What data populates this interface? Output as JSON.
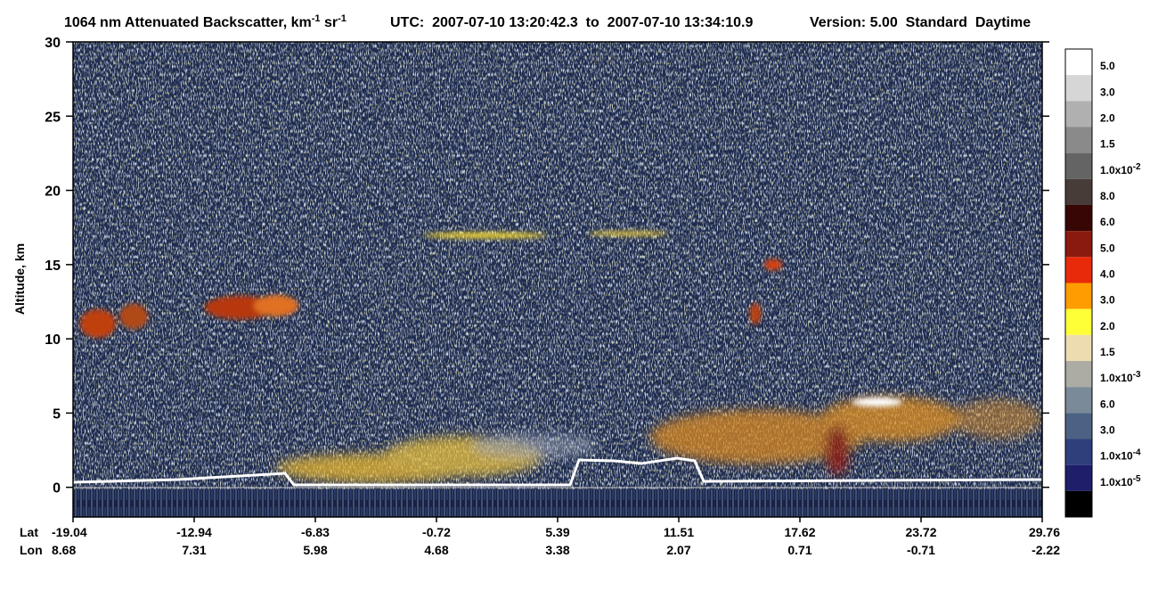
{
  "chart_data": {
    "type": "curtain",
    "title": {
      "text": "1064 nm Attenuated Backscatter, km",
      "sup1": "-1",
      "mid": " sr",
      "sup2": "-1"
    },
    "utc": "UTC:  2007-07-10 13:20:42.3  to  2007-07-10 13:34:10.9",
    "version": "Version: 5.00  Standard  Daytime",
    "ylabel": "Altitude, km",
    "ylim": [
      -2,
      30
    ],
    "yticks": [
      0,
      5,
      10,
      15,
      20,
      25,
      30
    ],
    "x_rows": [
      {
        "name": "Lat",
        "values": [
          -19.04,
          -12.94,
          -6.83,
          -0.72,
          5.39,
          11.51,
          17.62,
          23.72,
          29.76
        ]
      },
      {
        "name": "Lon",
        "values": [
          8.68,
          7.31,
          5.98,
          4.68,
          3.38,
          2.07,
          0.71,
          -0.71,
          -2.22
        ]
      }
    ],
    "colorbar": {
      "colors": [
        "#ffffff",
        "#d6d6d6",
        "#b0b0b0",
        "#8a8a8a",
        "#646464",
        "#483c38",
        "#380604",
        "#8a1a10",
        "#e82a0a",
        "#ff9c00",
        "#ffff38",
        "#ecdcb0",
        "#acaca4",
        "#7a8a98",
        "#4c6284",
        "#2e407c",
        "#1e1e6a",
        "#000000"
      ],
      "labels": [
        "5.0",
        "3.0",
        "2.0",
        "1.5",
        "1.0x10",
        "8.0",
        "6.0",
        "5.0",
        "4.0",
        "3.0",
        "2.0",
        "1.5",
        "1.0x10",
        "6.0",
        "3.0",
        "1.0x10",
        "1.0x10",
        null
      ],
      "exponents": [
        null,
        null,
        null,
        null,
        "-2",
        null,
        null,
        null,
        null,
        null,
        null,
        null,
        "-3",
        null,
        null,
        "-4",
        "-5",
        null
      ]
    }
  }
}
